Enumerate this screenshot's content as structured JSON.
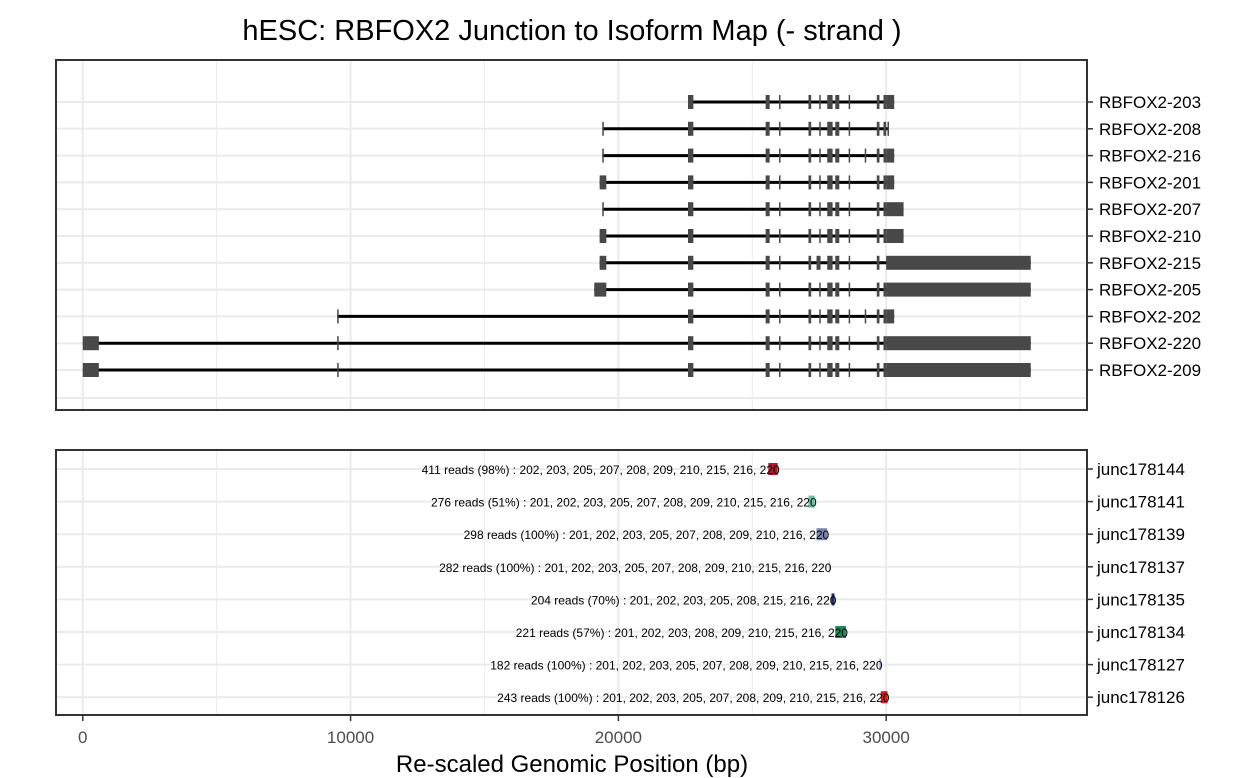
{
  "chart_data": {
    "type": "gene-structure",
    "title": "hESC: RBFOX2 Junction to Isoform Map (- strand )",
    "xlabel": "Re-scaled Genomic Position (bp)",
    "xlim": [
      -1000,
      37500
    ],
    "xticks": [
      0,
      10000,
      20000,
      30000
    ],
    "tick_labels": [
      "0",
      "10000",
      "20000",
      "30000"
    ],
    "grid": true,
    "colors": {
      "feature": "#484848",
      "frame": "#333333",
      "grid": "#ebebeb"
    },
    "isoforms": [
      {
        "name": "RBFOX2-203",
        "start": 22600,
        "end": 30300,
        "exons": [
          [
            22600,
            22800
          ],
          [
            25500,
            25650
          ],
          [
            26000,
            26050
          ],
          [
            27100,
            27200
          ],
          [
            27500,
            27550
          ],
          [
            27800,
            28000
          ],
          [
            28100,
            28250
          ],
          [
            28600,
            28650
          ],
          [
            29650,
            29750
          ],
          [
            29900,
            30000
          ],
          [
            30000,
            30300
          ]
        ]
      },
      {
        "name": "RBFOX2-208",
        "start": 19400,
        "end": 30100,
        "exons": [
          [
            19400,
            19450
          ],
          [
            22600,
            22800
          ],
          [
            25500,
            25650
          ],
          [
            26000,
            26050
          ],
          [
            27100,
            27200
          ],
          [
            27500,
            27550
          ],
          [
            27800,
            28000
          ],
          [
            28100,
            28250
          ],
          [
            28600,
            28650
          ],
          [
            29650,
            29750
          ],
          [
            29900,
            30000
          ],
          [
            30050,
            30100
          ]
        ]
      },
      {
        "name": "RBFOX2-216",
        "start": 19400,
        "end": 30300,
        "exons": [
          [
            19400,
            19450
          ],
          [
            22600,
            22800
          ],
          [
            25500,
            25650
          ],
          [
            26000,
            26050
          ],
          [
            27100,
            27200
          ],
          [
            27500,
            27550
          ],
          [
            27800,
            28000
          ],
          [
            28100,
            28250
          ],
          [
            28600,
            28650
          ],
          [
            29200,
            29250
          ],
          [
            29650,
            29750
          ],
          [
            29900,
            30000
          ],
          [
            30000,
            30300
          ]
        ]
      },
      {
        "name": "RBFOX2-201",
        "start": 19300,
        "end": 30300,
        "exons": [
          [
            19300,
            19550
          ],
          [
            22600,
            22800
          ],
          [
            25500,
            25650
          ],
          [
            26000,
            26050
          ],
          [
            27100,
            27200
          ],
          [
            27500,
            27550
          ],
          [
            27800,
            28000
          ],
          [
            28100,
            28250
          ],
          [
            28600,
            28650
          ],
          [
            29650,
            29750
          ],
          [
            29900,
            30000
          ],
          [
            30000,
            30300
          ]
        ]
      },
      {
        "name": "RBFOX2-207",
        "start": 19400,
        "end": 30650,
        "exons": [
          [
            19400,
            19450
          ],
          [
            22600,
            22800
          ],
          [
            25500,
            25650
          ],
          [
            26000,
            26050
          ],
          [
            27100,
            27200
          ],
          [
            27500,
            27550
          ],
          [
            27800,
            28000
          ],
          [
            28100,
            28250
          ],
          [
            28600,
            28650
          ],
          [
            29650,
            29750
          ],
          [
            29900,
            30000
          ],
          [
            30000,
            30650
          ]
        ]
      },
      {
        "name": "RBFOX2-210",
        "start": 19300,
        "end": 30650,
        "exons": [
          [
            19300,
            19550
          ],
          [
            22600,
            22800
          ],
          [
            25500,
            25650
          ],
          [
            26000,
            26050
          ],
          [
            27100,
            27200
          ],
          [
            27500,
            27550
          ],
          [
            27800,
            28000
          ],
          [
            28100,
            28250
          ],
          [
            28600,
            28650
          ],
          [
            29650,
            29750
          ],
          [
            29900,
            30000
          ],
          [
            30000,
            30650
          ]
        ]
      },
      {
        "name": "RBFOX2-215",
        "start": 19300,
        "end": 35400,
        "exons": [
          [
            19300,
            19550
          ],
          [
            22600,
            22800
          ],
          [
            25500,
            25650
          ],
          [
            26000,
            26050
          ],
          [
            27100,
            27200
          ],
          [
            27400,
            27550
          ],
          [
            27800,
            28000
          ],
          [
            28100,
            28250
          ],
          [
            28600,
            28650
          ],
          [
            29650,
            29750
          ],
          [
            30000,
            35400
          ]
        ]
      },
      {
        "name": "RBFOX2-205",
        "start": 19100,
        "end": 35400,
        "exons": [
          [
            19100,
            19550
          ],
          [
            22600,
            22800
          ],
          [
            25500,
            25650
          ],
          [
            26000,
            26050
          ],
          [
            27100,
            27200
          ],
          [
            27500,
            27550
          ],
          [
            27800,
            28000
          ],
          [
            28100,
            28250
          ],
          [
            28600,
            28650
          ],
          [
            29650,
            29750
          ],
          [
            29900,
            30000
          ],
          [
            30000,
            35400
          ]
        ]
      },
      {
        "name": "RBFOX2-202",
        "start": 9500,
        "end": 30300,
        "exons": [
          [
            9500,
            9550
          ],
          [
            22600,
            22800
          ],
          [
            25500,
            25650
          ],
          [
            26000,
            26050
          ],
          [
            27100,
            27200
          ],
          [
            27500,
            27550
          ],
          [
            27800,
            28000
          ],
          [
            28100,
            28250
          ],
          [
            28600,
            28650
          ],
          [
            29200,
            29250
          ],
          [
            29650,
            29750
          ],
          [
            29900,
            30000
          ],
          [
            30000,
            30300
          ]
        ]
      },
      {
        "name": "RBFOX2-220",
        "start": 0,
        "end": 35400,
        "exons": [
          [
            0,
            600
          ],
          [
            9500,
            9550
          ],
          [
            22600,
            22800
          ],
          [
            25500,
            25650
          ],
          [
            26000,
            26050
          ],
          [
            27100,
            27200
          ],
          [
            27500,
            27550
          ],
          [
            27800,
            28000
          ],
          [
            28100,
            28250
          ],
          [
            28600,
            28650
          ],
          [
            29650,
            29750
          ],
          [
            29900,
            30000
          ],
          [
            30000,
            35400
          ]
        ]
      },
      {
        "name": "RBFOX2-209",
        "start": 0,
        "end": 35400,
        "exons": [
          [
            0,
            600
          ],
          [
            9500,
            9550
          ],
          [
            22600,
            22800
          ],
          [
            25500,
            25650
          ],
          [
            26000,
            26050
          ],
          [
            27100,
            27200
          ],
          [
            27500,
            27550
          ],
          [
            27800,
            28000
          ],
          [
            28100,
            28250
          ],
          [
            28600,
            28650
          ],
          [
            29650,
            29750
          ],
          [
            29900,
            30000
          ],
          [
            30000,
            35400
          ]
        ]
      }
    ],
    "junctions": [
      {
        "name": "junc178144",
        "label": "411 reads (98%) : 202, 203, 205, 207, 208, 209, 210, 215, 216, 220",
        "start": 25600,
        "end": 25950,
        "color": "#b2182b"
      },
      {
        "name": "junc178141",
        "label": "276 reads (51%) : 201, 202, 203, 205, 207, 208, 209, 210, 215, 216, 220",
        "start": 27100,
        "end": 27330,
        "color": "#66c2a5"
      },
      {
        "name": "junc178139",
        "label": "298 reads (100%) : 201, 202, 203, 205, 207, 208, 209, 210, 216, 220",
        "start": 27400,
        "end": 27800,
        "color": "#7b86ad"
      },
      {
        "name": "junc178137",
        "label": "282 reads (100%) : 201, 202, 203, 205, 207, 208, 209, 210, 215, 216, 220",
        "start": 27850,
        "end": 27880,
        "color": "#cccccc"
      },
      {
        "name": "junc178135",
        "label": "204 reads (70%) : 201, 202, 203, 205, 208, 215, 216, 220",
        "start": 27960,
        "end": 28070,
        "color": "#1f2a6b"
      },
      {
        "name": "junc178134",
        "label": "221 reads (57%) : 201, 202, 203, 208, 209, 210, 215, 216, 220",
        "start": 28100,
        "end": 28500,
        "color": "#1b8a5a"
      },
      {
        "name": "junc178127",
        "label": "182 reads (100%) : 201, 202, 203, 205, 207, 208, 209, 210, 215, 216, 220",
        "start": 29750,
        "end": 29790,
        "color": "#9aa0c8"
      },
      {
        "name": "junc178126",
        "label": "243 reads (100%) : 201, 202, 203, 205, 207, 208, 209, 210, 215, 216, 220",
        "start": 29800,
        "end": 30050,
        "color": "#d7191c"
      }
    ]
  }
}
